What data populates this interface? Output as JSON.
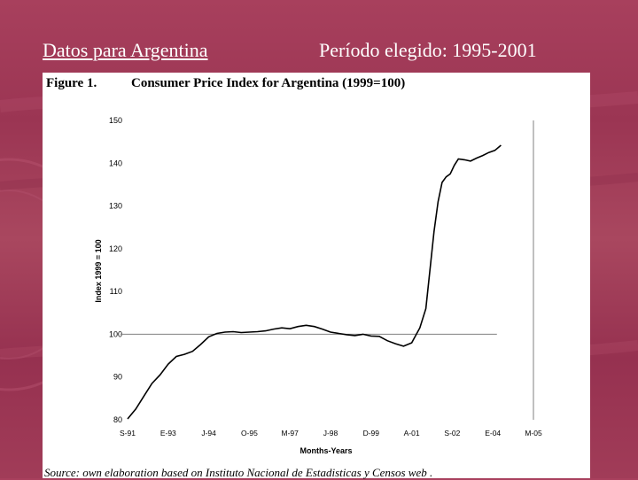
{
  "slide": {
    "title_left": "Datos para Argentina",
    "title_right": "Período elegido: 1995-2001"
  },
  "figure": {
    "label": "Figure 1.",
    "title": "Consumer Price Index for Argentina (1999=100)",
    "source": "Source: own elaboration based on Instituto Nacional de Estadisticas y Censos web ."
  },
  "chart_data": {
    "type": "line",
    "title": "Consumer Price Index for Argentina (1999=100)",
    "xlabel": "Months-Years",
    "ylabel": "Index 1999 = 100",
    "ylim": [
      80,
      150
    ],
    "yticks": [
      80,
      90,
      100,
      110,
      120,
      130,
      140,
      150
    ],
    "categories": [
      "S-91",
      "E-93",
      "J-94",
      "O-95",
      "M-97",
      "J-98",
      "D-99",
      "A-01",
      "S-02",
      "E-04",
      "M-05"
    ],
    "reference_line": 100,
    "grid": false,
    "series": [
      {
        "name": "CPI",
        "x": [
          0,
          0.2,
          0.4,
          0.6,
          0.8,
          1.0,
          1.2,
          1.4,
          1.6,
          1.8,
          2.0,
          2.2,
          2.4,
          2.6,
          2.8,
          3.0,
          3.2,
          3.4,
          3.6,
          3.8,
          4.0,
          4.2,
          4.4,
          4.6,
          4.8,
          5.0,
          5.2,
          5.4,
          5.6,
          5.8,
          6.0,
          6.2,
          6.4,
          6.6,
          6.8,
          7.0,
          7.2,
          7.35,
          7.45,
          7.55,
          7.65,
          7.75,
          7.85,
          7.95,
          8.05,
          8.15,
          8.3,
          8.45,
          8.6,
          8.75,
          8.9,
          9.05,
          9.2
        ],
        "values": [
          80.2,
          82.5,
          85.5,
          88.5,
          90.5,
          93.0,
          94.8,
          95.3,
          96.0,
          97.6,
          99.4,
          100.2,
          100.5,
          100.6,
          100.4,
          100.5,
          100.6,
          100.8,
          101.2,
          101.5,
          101.3,
          101.8,
          102.1,
          101.8,
          101.2,
          100.5,
          100.2,
          99.9,
          99.7,
          100.0,
          99.6,
          99.5,
          98.5,
          97.8,
          97.2,
          98.0,
          101.5,
          106.0,
          115.0,
          124.0,
          131.0,
          135.5,
          136.8,
          137.5,
          139.5,
          141.0,
          140.8,
          140.5,
          141.2,
          141.8,
          142.5,
          143.0,
          144.2
        ]
      }
    ]
  },
  "colors": {
    "background": "#a13c58",
    "line": "#000000",
    "reference": "#808080"
  }
}
